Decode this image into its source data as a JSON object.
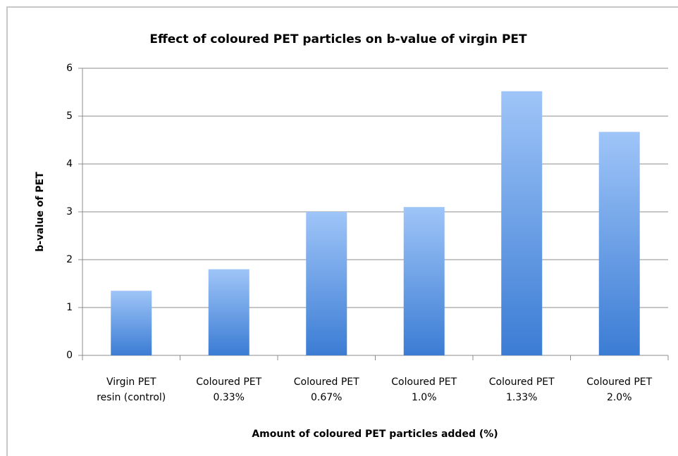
{
  "chart_data": {
    "type": "bar",
    "title": "Effect of coloured PET particles on b-value of virgin PET",
    "x_label": "Amount of coloured PET particles added (%)",
    "y_label": "b-value of PET",
    "categories": [
      [
        "Virgin PET",
        "resin (control)"
      ],
      [
        "Coloured PET",
        "0.33%"
      ],
      [
        "Coloured PET",
        "0.67%"
      ],
      [
        "Coloured PET",
        "1.0%"
      ],
      [
        "Coloured PET",
        "1.33%"
      ],
      [
        "Coloured PET",
        "2.0%"
      ]
    ],
    "values": [
      1.35,
      1.8,
      3.0,
      3.1,
      5.52,
      4.67
    ],
    "color": [
      "#9fc5f8",
      "#3b7cd4"
    ],
    "ylim": [
      0,
      6
    ],
    "yticks": [
      0,
      1,
      2,
      3,
      4,
      5,
      6
    ],
    "grid": true
  }
}
